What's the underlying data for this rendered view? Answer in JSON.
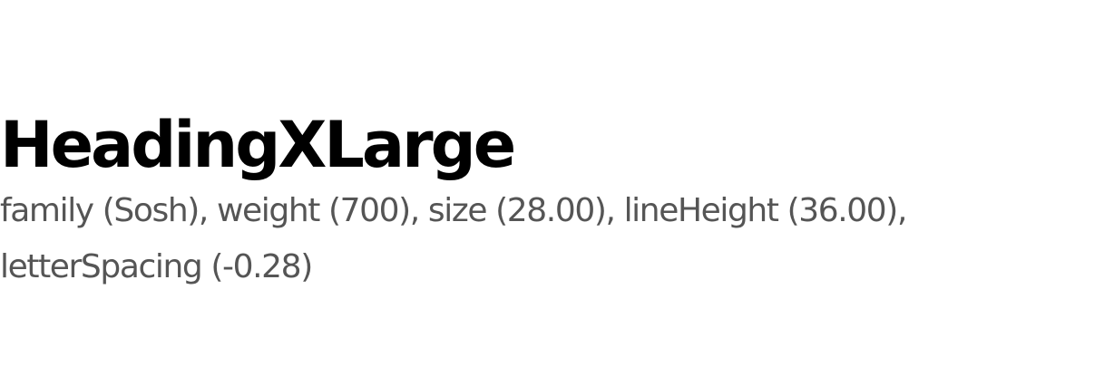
{
  "token": {
    "name": "HeadingXLarge",
    "description": "family (Sosh), weight (700), size (28.00), lineHeight (36.00), letterSpacing (-0.28)"
  },
  "colors": {
    "background": "#ffffff",
    "heading": "#000000",
    "description": "#555555"
  }
}
